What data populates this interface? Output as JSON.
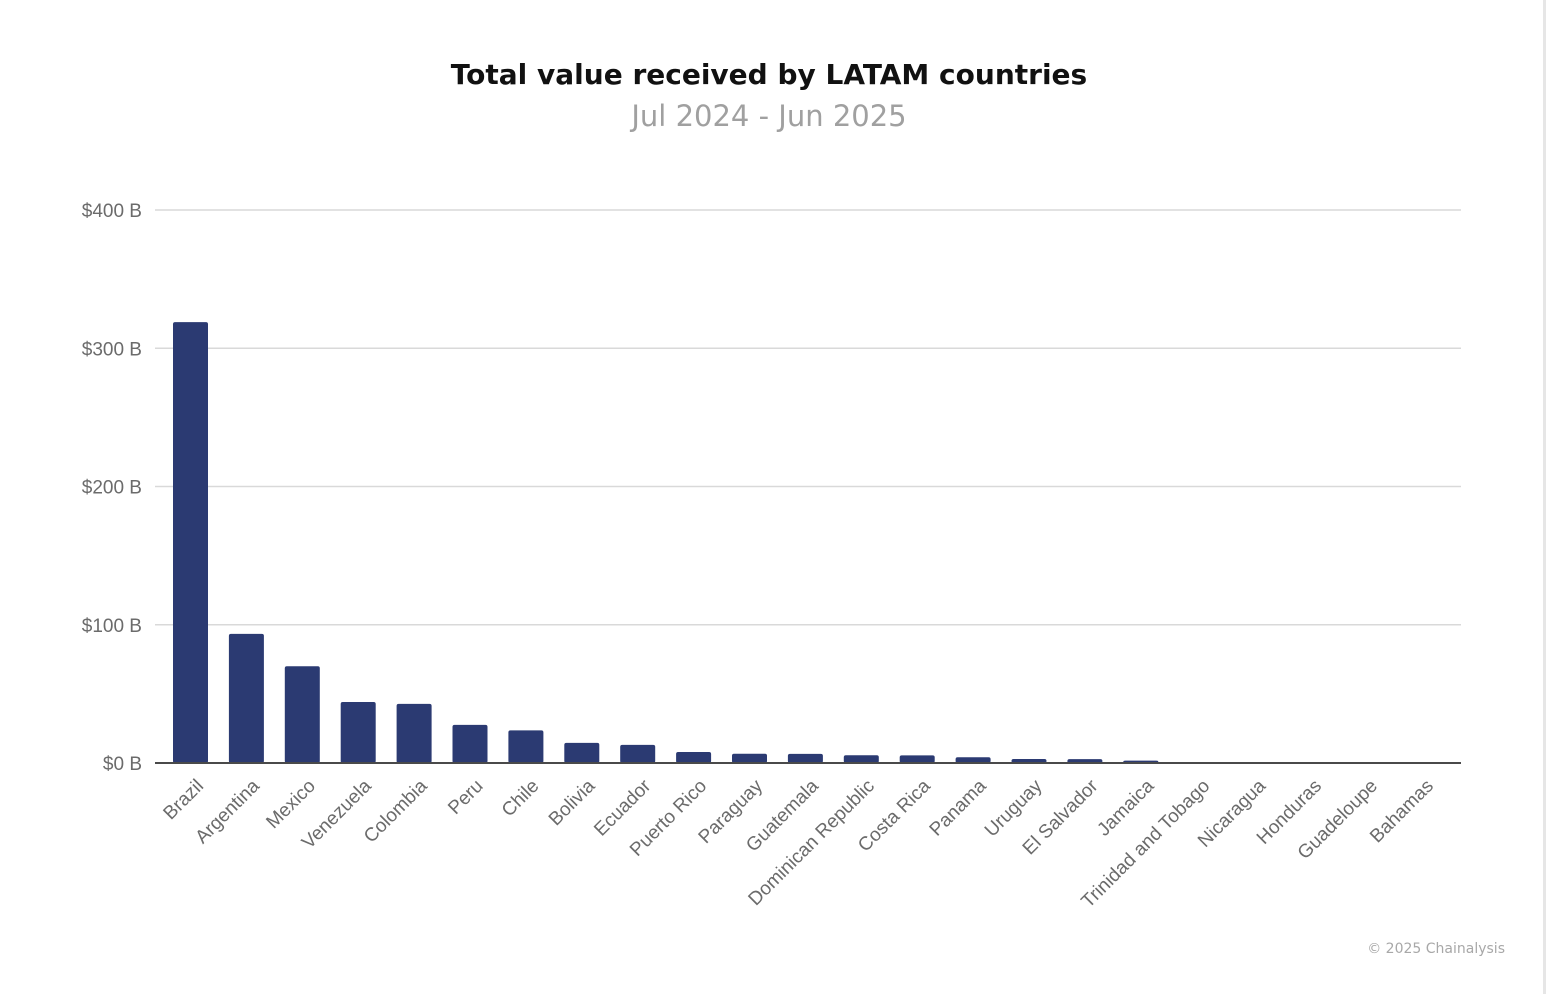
{
  "chart_data": {
    "type": "bar",
    "title": "Total value received by LATAM countries",
    "subtitle": "Jul 2024 - Jun 2025",
    "xlabel": "",
    "ylabel": "",
    "ylim": [
      0,
      400
    ],
    "yticks": [
      {
        "value": 0,
        "label": "$0 B"
      },
      {
        "value": 100,
        "label": "$100 B"
      },
      {
        "value": 200,
        "label": "$200 B"
      },
      {
        "value": 300,
        "label": "$300 B"
      },
      {
        "value": 400,
        "label": "$400 B"
      }
    ],
    "grid": true,
    "bar_color": "#2b3a72",
    "categories": [
      "Brazil",
      "Argentina",
      "Mexico",
      "Venezuela",
      "Colombia",
      "Peru",
      "Chile",
      "Bolivia",
      "Ecuador",
      "Puerto Rico",
      "Paraguay",
      "Guatemala",
      "Dominican Republic",
      "Costa Rica",
      "Panama",
      "Uruguay",
      "El Salvador",
      "Jamaica",
      "Trinidad and Tobago",
      "Nicaragua",
      "Honduras",
      "Guadeloupe",
      "Bahamas"
    ],
    "values": [
      318.9,
      93.4,
      70.0,
      44.1,
      42.8,
      27.6,
      23.6,
      14.6,
      13.1,
      8.0,
      6.7,
      6.6,
      5.6,
      5.5,
      4.2,
      2.9,
      2.8,
      1.7,
      0.5,
      0.4,
      0.3,
      0.1,
      0.1
    ]
  },
  "credit": "© 2025 Chainalysis"
}
